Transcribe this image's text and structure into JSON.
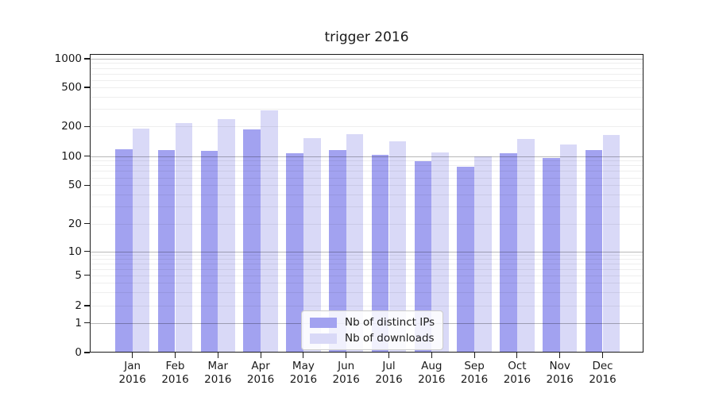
{
  "title": "trigger 2016",
  "legend": {
    "items": [
      {
        "label": "Nb of distinct IPs",
        "color": "#a2a2f0"
      },
      {
        "label": "Nb of downloads",
        "color": "#d9d9f7"
      }
    ]
  },
  "chart_data": {
    "type": "bar",
    "title": "trigger 2016",
    "categories": [
      "Jan 2016",
      "Feb 2016",
      "Mar 2016",
      "Apr 2016",
      "May 2016",
      "Jun 2016",
      "Jul 2016",
      "Aug 2016",
      "Sep 2016",
      "Oct 2016",
      "Nov 2016",
      "Dec 2016"
    ],
    "series": [
      {
        "name": "Nb of distinct IPs",
        "color": "#a2a2f0",
        "values": [
          117,
          116,
          112,
          188,
          106,
          115,
          103,
          89,
          78,
          107,
          96,
          116
        ]
      },
      {
        "name": "Nb of downloads",
        "color": "#d9d9f7",
        "values": [
          190,
          218,
          238,
          290,
          151,
          168,
          140,
          109,
          100,
          149,
          132,
          163
        ]
      }
    ],
    "xlabel": "",
    "ylabel": "",
    "yscale": "symlog",
    "ylim": [
      0,
      1120
    ],
    "y_ticks": [
      0,
      1,
      2,
      5,
      10,
      20,
      50,
      100,
      200,
      500,
      1000
    ],
    "y_major_gridlines": [
      1,
      10,
      100,
      1000
    ],
    "y_minor_gridlines": [
      2,
      3,
      4,
      5,
      6,
      7,
      8,
      9,
      20,
      30,
      40,
      50,
      60,
      70,
      80,
      90,
      200,
      300,
      400,
      500,
      600,
      700,
      800,
      900
    ],
    "grid": true,
    "legend_position": "lower center"
  }
}
